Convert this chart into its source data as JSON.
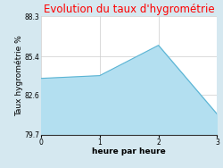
{
  "title": "Evolution du taux d'hygrométrie",
  "title_color": "#ff0000",
  "xlabel": "heure par heure",
  "ylabel": "Taux hygrométrie %",
  "x": [
    0,
    1,
    2,
    3
  ],
  "y": [
    83.8,
    84.0,
    86.2,
    81.2
  ],
  "ylim": [
    79.7,
    88.3
  ],
  "xlim": [
    0,
    3
  ],
  "yticks": [
    79.7,
    82.6,
    85.4,
    88.3
  ],
  "xticks": [
    0,
    1,
    2,
    3
  ],
  "fill_color": "#b3dff0",
  "line_color": "#5ab4d4",
  "line_width": 0.8,
  "bg_color": "#d5e8f0",
  "plot_bg_color": "#ffffff",
  "grid_color": "#cccccc",
  "title_fontsize": 8.5,
  "label_fontsize": 6.5,
  "tick_fontsize": 5.5
}
